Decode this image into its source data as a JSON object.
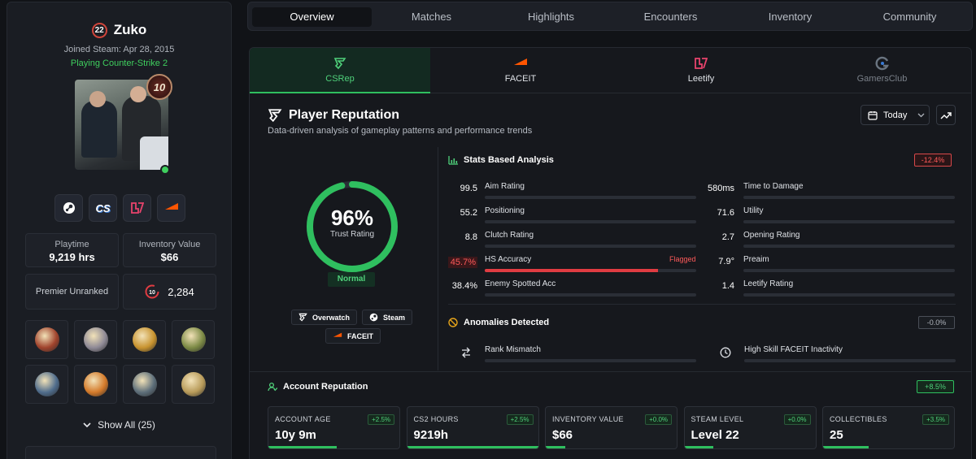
{
  "profile": {
    "level": "22",
    "name": "Zuko",
    "joined": "Joined Steam: Apr 28, 2015",
    "status": "Playing Counter-Strike 2",
    "rank_badge": "10",
    "online": true
  },
  "platforms": [
    "steam-icon",
    "cs-icon",
    "leetify-icon",
    "faceit-icon"
  ],
  "platform_cs_label": "CS",
  "stats": {
    "playtime_label": "Playtime",
    "playtime_value": "9,219 hrs",
    "inventory_label": "Inventory Value",
    "inventory_value": "$66",
    "premier_label": "Premier Unranked",
    "rating_badge": "10",
    "rating_value": "2,284"
  },
  "medals": [
    {
      "name": "faceit-level-10-medal",
      "color": "#a0432c"
    },
    {
      "name": "silver-coin-medal",
      "color": "#8f8a96"
    },
    {
      "name": "gold-service-medal",
      "color": "#c8932f"
    },
    {
      "name": "green-coin-medal",
      "color": "#7c8a45"
    },
    {
      "name": "blue-diamond-medal",
      "color": "#4f6c8c"
    },
    {
      "name": "orange-service-medal",
      "color": "#d47a2a"
    },
    {
      "name": "star-service-medal",
      "color": "#5d6e7a"
    },
    {
      "name": "gold-star-medal",
      "color": "#b89b5a"
    }
  ],
  "show_all": "Show All (25)",
  "nav_tabs": [
    "Overview",
    "Matches",
    "Highlights",
    "Encounters",
    "Inventory",
    "Community"
  ],
  "source_tabs": [
    "CSRep",
    "FACEIT",
    "Leetify",
    "GamersClub"
  ],
  "reputation": {
    "title": "Player Reputation",
    "subtitle": "Data-driven analysis of gameplay patterns and performance trends",
    "date_filter": "Today",
    "trust_pct": "96%",
    "trust_value": 96,
    "trust_label": "Trust Rating",
    "status": "Normal",
    "sources": [
      "Overwatch",
      "Steam",
      "FACEIT"
    ]
  },
  "stats_analysis": {
    "title": "Stats Based Analysis",
    "delta": "-12.4%",
    "left": [
      {
        "value": "99.5",
        "label": "Aim Rating",
        "fill": 0,
        "flagged": false
      },
      {
        "value": "55.2",
        "label": "Positioning",
        "fill": 0,
        "flagged": false
      },
      {
        "value": "8.8",
        "label": "Clutch Rating",
        "fill": 0,
        "flagged": false
      },
      {
        "value": "45.7%",
        "label": "HS Accuracy",
        "fill": 0.82,
        "flagged": true,
        "flag_text": "Flagged"
      },
      {
        "value": "38.4%",
        "label": "Enemy Spotted Acc",
        "fill": 0,
        "flagged": false
      }
    ],
    "right": [
      {
        "value": "580ms",
        "label": "Time to Damage"
      },
      {
        "value": "71.6",
        "label": "Utility"
      },
      {
        "value": "2.7",
        "label": "Opening Rating"
      },
      {
        "value": "7.9°",
        "label": "Preaim"
      },
      {
        "value": "1.4",
        "label": "Leetify Rating"
      }
    ]
  },
  "anomalies": {
    "title": "Anomalies Detected",
    "delta": "-0.0%",
    "items": [
      {
        "label": "Rank Mismatch",
        "icon": "swap-icon"
      },
      {
        "label": "High Skill FACEIT Inactivity",
        "icon": "clock-icon"
      }
    ]
  },
  "account_reputation": {
    "title": "Account Reputation",
    "delta": "+8.5%",
    "cards": [
      {
        "title": "ACCOUNT AGE",
        "delta": "+2.5%",
        "value": "10y 9m",
        "fill": 0.52
      },
      {
        "title": "CS2 HOURS",
        "delta": "+2.5%",
        "value": "9219h",
        "fill": 1.0
      },
      {
        "title": "INVENTORY VALUE",
        "delta": "+0.0%",
        "value": "$66",
        "fill": 0.15
      },
      {
        "title": "STEAM LEVEL",
        "delta": "+0.0%",
        "value": "Level 22",
        "fill": 0.22
      },
      {
        "title": "COLLECTIBLES",
        "delta": "+3.5%",
        "value": "25",
        "fill": 0.35
      }
    ]
  },
  "colors": {
    "accent": "#2fbf5f",
    "danger": "#e03c42",
    "faceit": "#ff5500",
    "leetify": "#e8436c"
  }
}
